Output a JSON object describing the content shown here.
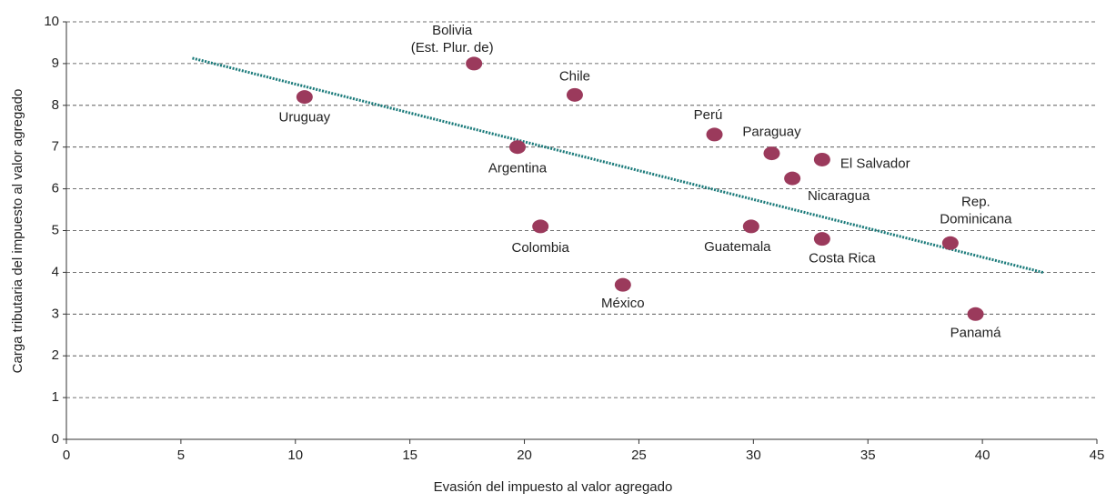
{
  "chart_data": {
    "type": "scatter",
    "x_label": "Evasión del impuesto al valor agregado",
    "y_label": "Carga tributaria del impuesto al valor agregado",
    "color": "#9b3a5c",
    "categories": [
      "Uruguay",
      "Bolivia\n(Est. Plur. de)",
      "Chile",
      "Argentina",
      "Colombia",
      "México",
      "Perú",
      "Paraguay",
      "El Salvador",
      "Nicaragua",
      "Guatemala",
      "Costa Rica",
      "Rep.\nDominicana",
      "Panamá"
    ],
    "x": [
      10.4,
      17.8,
      22.2,
      19.7,
      20.7,
      24.3,
      28.3,
      30.8,
      33.0,
      31.7,
      29.9,
      33.0,
      38.6,
      39.7
    ],
    "values": [
      8.2,
      9.0,
      8.25,
      7.0,
      5.1,
      3.7,
      7.3,
      6.85,
      6.7,
      6.25,
      5.1,
      4.8,
      4.7,
      3.0
    ],
    "trendline": {
      "color": "#1a7a7a",
      "x": [
        5.5,
        42.7
      ],
      "y": [
        9.13,
        3.99
      ]
    },
    "xlim": [
      0,
      45
    ],
    "xticks": [
      0,
      5,
      10,
      15,
      20,
      25,
      30,
      35,
      40,
      45
    ],
    "ylim": [
      0,
      10
    ],
    "yticks": [
      0,
      1,
      2,
      3,
      4,
      5,
      6,
      7,
      8,
      9,
      10
    ],
    "grid": true
  }
}
